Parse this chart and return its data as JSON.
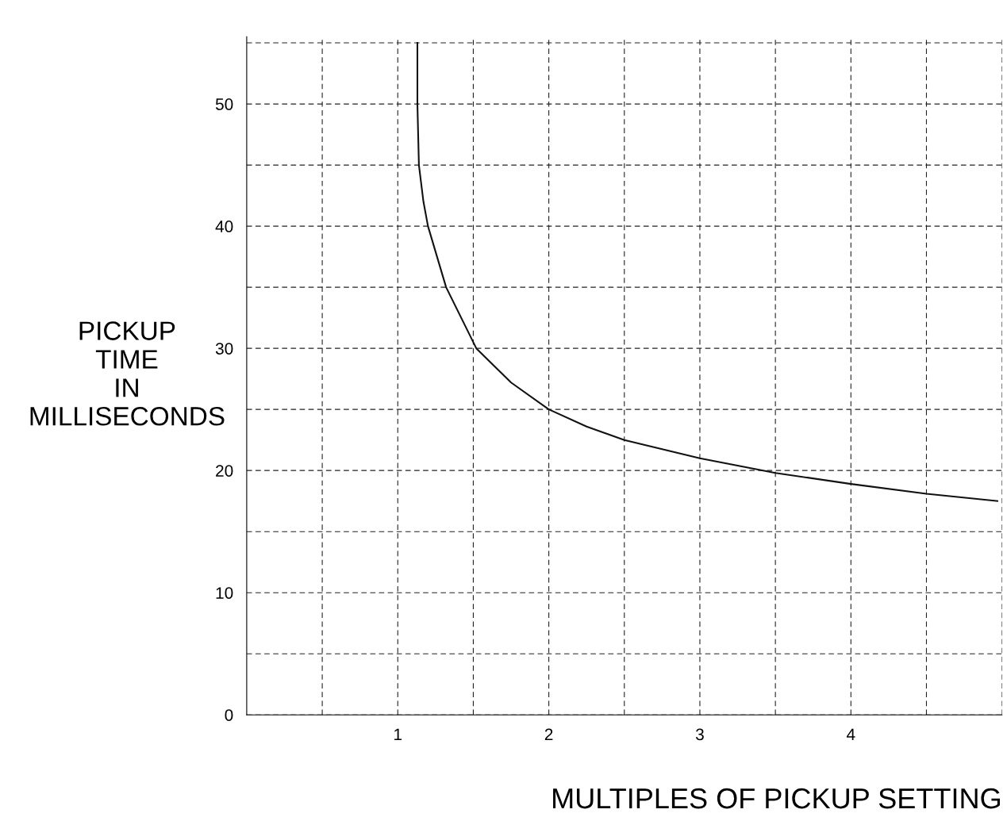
{
  "chart_data": {
    "type": "line",
    "xlabel": "MULTIPLES OF PICKUP SETTING",
    "ylabel": "PICKUP\nTIME\nIN\nMILLISECONDS",
    "series": [
      {
        "color": "#111111",
        "x": [
          1.13,
          1.13,
          1.14,
          1.17,
          1.2,
          1.26,
          1.32,
          1.42,
          1.52,
          1.75,
          2.0,
          2.25,
          2.5,
          3.0,
          3.5,
          4.0,
          4.5,
          4.97
        ],
        "values": [
          55,
          50,
          45,
          42,
          40,
          37.5,
          35,
          32.5,
          30,
          27.2,
          25,
          23.6,
          22.5,
          21.0,
          19.8,
          18.9,
          18.1,
          17.5
        ]
      }
    ],
    "xlim": [
      0,
      5
    ],
    "ylim": [
      0,
      55.5
    ],
    "xticks": [
      {
        "value": 0.5,
        "label": null
      },
      1,
      {
        "value": 1.5,
        "label": null
      },
      2,
      {
        "value": 2.5,
        "label": null
      },
      3,
      {
        "value": 3.5,
        "label": null
      },
      4,
      {
        "value": 4.5,
        "label": null
      },
      {
        "value": 5,
        "label": null
      }
    ],
    "yticks": [
      0,
      {
        "value": 5,
        "label": null
      },
      10,
      {
        "value": 15,
        "label": null
      },
      20,
      {
        "value": 25,
        "label": null
      },
      30,
      {
        "value": 35,
        "label": null
      },
      40,
      {
        "value": 45,
        "label": null
      },
      50,
      {
        "value": 55,
        "label": null
      }
    ],
    "grid": true,
    "line_style": "solid"
  }
}
